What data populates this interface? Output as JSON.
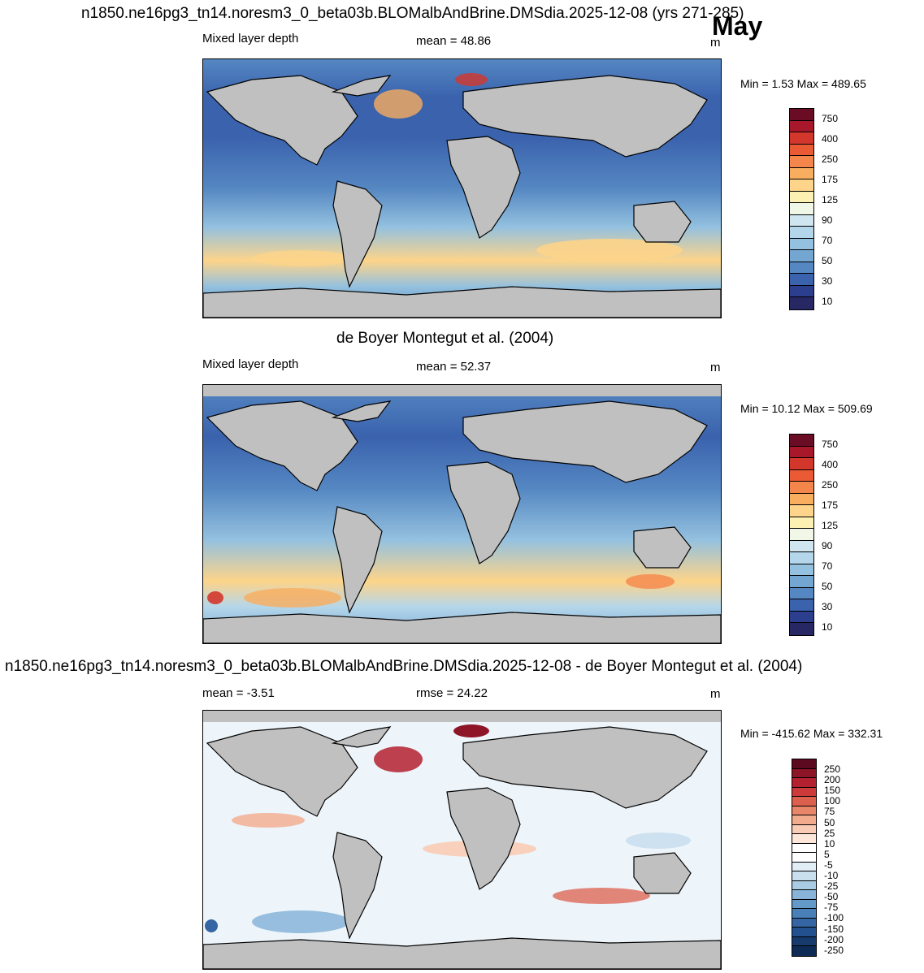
{
  "month": "May",
  "panels": [
    {
      "title": "n1850.ne16pg3_tn14.noresm3_0_beta03b.BLOMalbAndBrine.DMSdia.2025-12-08 (yrs 271-285)",
      "left_label": "Mixed layer depth",
      "center_label": "mean =  48.86",
      "units": "m",
      "minmax": "Min =   1.53 Max = 489.65",
      "colorbar": {
        "colors": [
          "#6a0d24",
          "#a8182a",
          "#d3372c",
          "#ea5a35",
          "#f5864b",
          "#f9ad5e",
          "#fdd48a",
          "#fdf0b3",
          "#f0f7e7",
          "#cfe6f1",
          "#b4d6ea",
          "#94c1df",
          "#74a6d2",
          "#5587c2",
          "#3a62ad",
          "#2c3f8f",
          "#272863"
        ],
        "labels": [
          "750",
          "400",
          "250",
          "175",
          "125",
          "90",
          "70",
          "50",
          "30",
          "10"
        ]
      }
    },
    {
      "title": "de Boyer Montegut et al. (2004)",
      "left_label": "Mixed layer depth",
      "center_label": "mean =  52.37",
      "units": "m",
      "minmax": "Min =  10.12 Max = 509.69",
      "colorbar": {
        "colors": [
          "#6a0d24",
          "#a8182a",
          "#d3372c",
          "#ea5a35",
          "#f5864b",
          "#f9ad5e",
          "#fdd48a",
          "#fdf0b3",
          "#f0f7e7",
          "#cfe6f1",
          "#b4d6ea",
          "#94c1df",
          "#74a6d2",
          "#5587c2",
          "#3a62ad",
          "#2c3f8f",
          "#272863"
        ],
        "labels": [
          "750",
          "400",
          "250",
          "175",
          "125",
          "90",
          "70",
          "50",
          "30",
          "10"
        ]
      }
    },
    {
      "title": "n1850.ne16pg3_tn14.noresm3_0_beta03b.BLOMalbAndBrine.DMSdia.2025-12-08 - de Boyer Montegut et al. (2004)",
      "left_label": "mean =  -3.51",
      "center_label": "rmse =  24.22",
      "units": "m",
      "minmax": "Min = -415.62 Max = 332.31",
      "colorbar": {
        "colors": [
          "#5c0a1f",
          "#8e1428",
          "#b3202f",
          "#cc3b3a",
          "#dd5f4e",
          "#e98669",
          "#f2ab8d",
          "#f8ccb5",
          "#fde6da",
          "#ffffff",
          "#ffffff",
          "#e2eef6",
          "#c9dfee",
          "#a9cbe4",
          "#87b4d8",
          "#649ac9",
          "#4a80b8",
          "#3566a3",
          "#23508e",
          "#173a6d",
          "#0e2b55"
        ],
        "labels": [
          "250",
          "200",
          "150",
          "100",
          "75",
          "50",
          "25",
          "10",
          "5",
          "-5",
          "-10",
          "-25",
          "-50",
          "-75",
          "-100",
          "-150",
          "-200",
          "-250"
        ]
      }
    }
  ]
}
